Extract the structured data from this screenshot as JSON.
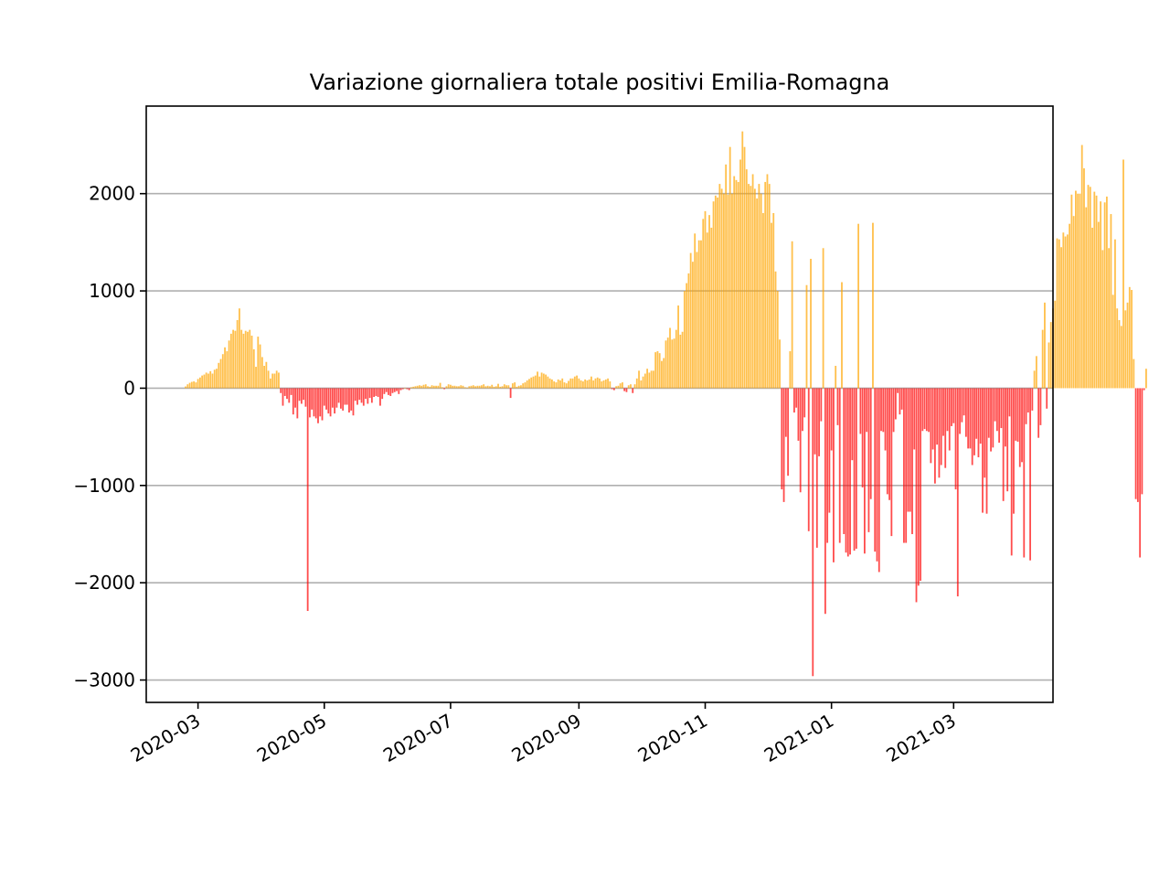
{
  "chart_data": {
    "type": "bar",
    "title": "Variazione giornaliera totale positivi Emilia-Romagna",
    "xlabel": "",
    "ylabel": "",
    "x_start": "2020-02-24",
    "x_end": "2021-03-28",
    "xlim": [
      "2020-02-05",
      "2021-04-18"
    ],
    "ylim": [
      -3230,
      2900
    ],
    "x_ticks": [
      "2020-03",
      "2020-05",
      "2020-07",
      "2020-09",
      "2020-11",
      "2021-01",
      "2021-03"
    ],
    "y_ticks": [
      -3000,
      -2000,
      -1000,
      0,
      1000,
      2000
    ],
    "y_tick_labels": [
      "−3000",
      "−2000",
      "−1000",
      "0",
      "1000",
      "2000"
    ],
    "grid": "horizontal",
    "colors": {
      "positive": "#ffa500",
      "negative": "#ff0000",
      "bar_alpha": 0.7,
      "grid": "#b0b0b0"
    },
    "values": [
      18,
      40,
      55,
      65,
      70,
      60,
      95,
      110,
      130,
      140,
      160,
      150,
      175,
      150,
      190,
      200,
      260,
      300,
      350,
      420,
      380,
      490,
      560,
      600,
      590,
      700,
      820,
      600,
      560,
      590,
      580,
      600,
      540,
      400,
      220,
      530,
      450,
      320,
      230,
      270,
      180,
      100,
      150,
      150,
      180,
      160,
      -50,
      -180,
      -80,
      -110,
      -150,
      -70,
      -270,
      -200,
      -310,
      -130,
      -160,
      -120,
      -190,
      -2290,
      -300,
      -220,
      -290,
      -310,
      -360,
      -290,
      -330,
      -180,
      -220,
      -260,
      -290,
      -200,
      -260,
      -200,
      -150,
      -210,
      -230,
      -170,
      -170,
      -250,
      -230,
      -280,
      -130,
      -170,
      -120,
      -150,
      -180,
      -110,
      -160,
      -100,
      -150,
      -90,
      -80,
      -90,
      -180,
      -110,
      -60,
      -40,
      -70,
      -80,
      -50,
      -40,
      -30,
      -60,
      -20,
      -10,
      5,
      -10,
      -20,
      10,
      15,
      20,
      25,
      30,
      25,
      35,
      40,
      20,
      15,
      30,
      25,
      25,
      25,
      55,
      10,
      -10,
      20,
      40,
      35,
      25,
      25,
      20,
      20,
      30,
      25,
      10,
      5,
      20,
      25,
      30,
      20,
      25,
      25,
      30,
      40,
      20,
      25,
      20,
      35,
      15,
      20,
      45,
      15,
      20,
      40,
      30,
      30,
      -100,
      50,
      60,
      15,
      25,
      30,
      50,
      60,
      80,
      95,
      110,
      120,
      130,
      170,
      120,
      160,
      150,
      140,
      120,
      100,
      90,
      70,
      60,
      90,
      80,
      100,
      60,
      50,
      75,
      100,
      100,
      120,
      130,
      100,
      80,
      70,
      90,
      80,
      90,
      120,
      80,
      100,
      110,
      100,
      70,
      80,
      90,
      100,
      70,
      -10,
      -20,
      20,
      25,
      50,
      60,
      -30,
      -40,
      30,
      40,
      -50,
      40,
      100,
      180,
      80,
      120,
      150,
      200,
      160,
      180,
      180,
      370,
      380,
      360,
      280,
      310,
      490,
      520,
      620,
      500,
      510,
      600,
      850,
      550,
      580,
      1000,
      1080,
      1180,
      1390,
      1300,
      1590,
      1400,
      1520,
      1520,
      1740,
      1820,
      1600,
      1780,
      1650,
      1920,
      1980,
      1960,
      2100,
      2050,
      2000,
      2300,
      1990,
      2480,
      2000,
      2180,
      2140,
      2120,
      2350,
      2640,
      2480,
      2250,
      2100,
      2080,
      2200,
      2050,
      1950,
      2100,
      2000,
      1800,
      2120,
      2200,
      2100,
      1700,
      1800,
      1200,
      1000,
      500,
      -1040,
      -1170,
      -500,
      -900,
      380,
      1510,
      -250,
      -200,
      -540,
      -1070,
      -440,
      -300,
      1060,
      -1470,
      1330,
      -2960,
      -680,
      -1640,
      -700,
      -340,
      1440,
      -2320,
      -1590,
      -1280,
      -640,
      -1790,
      230,
      -380,
      -1590,
      1090,
      -1500,
      -1690,
      -1730,
      -1710,
      -740,
      -1670,
      -1650,
      1690,
      -470,
      -1020,
      -1700,
      -450,
      -1480,
      -1140,
      1700,
      -1680,
      -1780,
      -1890,
      -440,
      -450,
      -640,
      -1090,
      -1150,
      -1520,
      -450,
      -320,
      -50,
      -270,
      -220,
      -1590,
      -1590,
      -1270,
      -1270,
      -1500,
      -630,
      -2200,
      -2030,
      -1980,
      -440,
      -420,
      -440,
      -450,
      -770,
      -630,
      -980,
      -580,
      -920,
      -790,
      -490,
      -820,
      -440,
      -640,
      -390,
      -360,
      -1040,
      -2140,
      -470,
      -350,
      -280,
      -500,
      -620,
      -620,
      -790,
      -690,
      -520,
      -710,
      -570,
      -1280,
      -920,
      -1290,
      -510,
      -650,
      -610,
      -340,
      -440,
      -560,
      -410,
      -1160,
      -600,
      -1060,
      -290,
      -1720,
      -1290,
      -540,
      -550,
      -810,
      -760,
      -1740,
      -370,
      -250,
      -1770,
      -230,
      180,
      330,
      -510,
      -380,
      600,
      880,
      -210,
      470,
      680,
      820,
      900,
      1540,
      1530,
      1450,
      1600,
      1560,
      1580,
      1690,
      1990,
      1770,
      2030,
      2000,
      2000,
      2500,
      2260,
      1860,
      2090,
      2070,
      1650,
      2020,
      1980,
      1710,
      1920,
      1420,
      1910,
      1970,
      1440,
      1790,
      960,
      1530,
      820,
      700,
      640,
      2350,
      800,
      880,
      1040,
      1010,
      300,
      -1140,
      -1170,
      -1740,
      -1090,
      -20,
      200
    ]
  }
}
